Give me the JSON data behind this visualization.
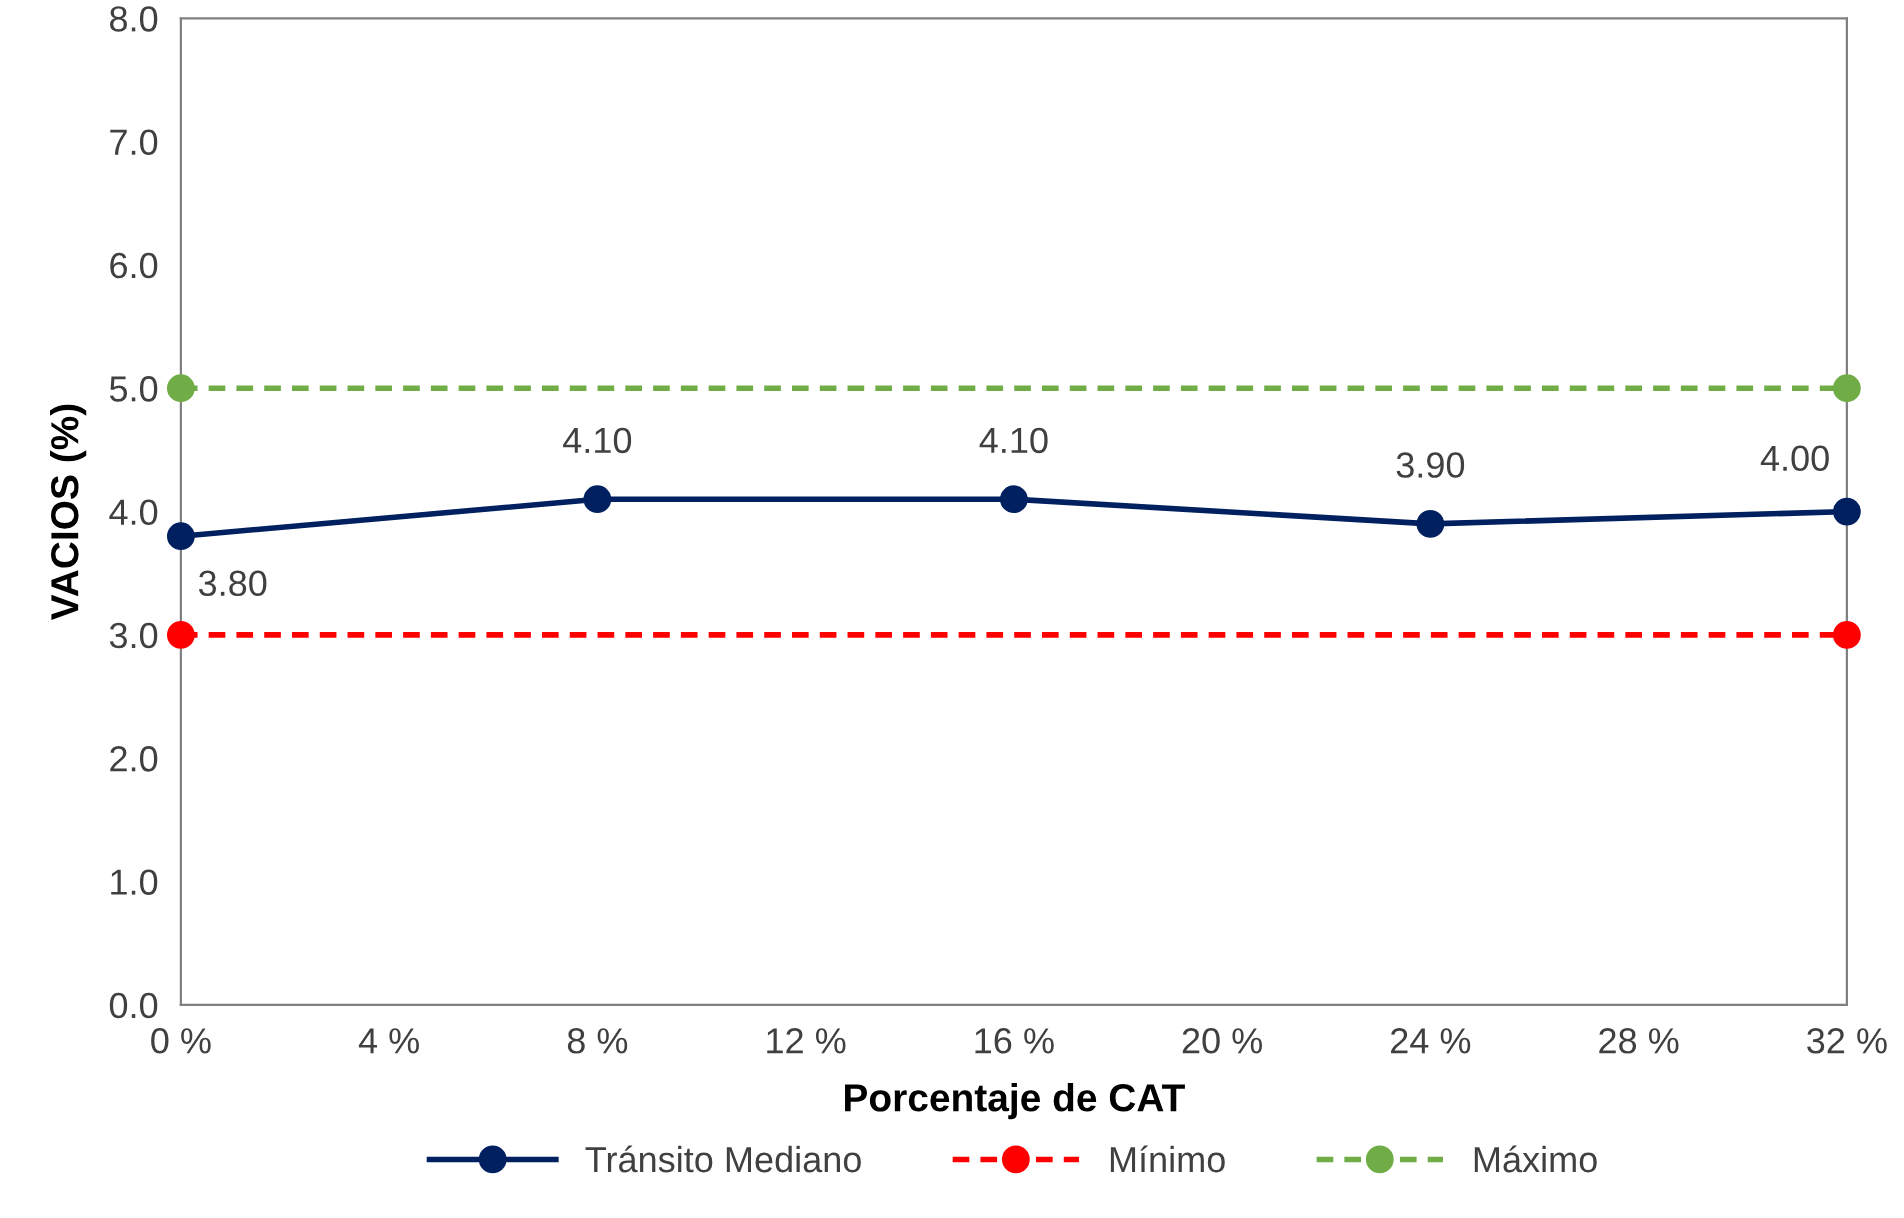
{
  "chart_data": {
    "type": "line",
    "xlabel": "Porcentaje de CAT",
    "ylabel": "VACIOS (%)",
    "xlim": [
      0,
      32
    ],
    "ylim": [
      0,
      8
    ],
    "xticks": [
      {
        "value": 0,
        "label": "0 %"
      },
      {
        "value": 4,
        "label": "4 %"
      },
      {
        "value": 8,
        "label": "8 %"
      },
      {
        "value": 12,
        "label": "12 %"
      },
      {
        "value": 16,
        "label": "16 %"
      },
      {
        "value": 20,
        "label": "20 %"
      },
      {
        "value": 24,
        "label": "24 %"
      },
      {
        "value": 28,
        "label": "28 %"
      },
      {
        "value": 32,
        "label": "32 %"
      }
    ],
    "yticks": [
      {
        "value": 0,
        "label": "0.0"
      },
      {
        "value": 1,
        "label": "1.0"
      },
      {
        "value": 2,
        "label": "2.0"
      },
      {
        "value": 3,
        "label": "3.0"
      },
      {
        "value": 4,
        "label": "4.0"
      },
      {
        "value": 5,
        "label": "5.0"
      },
      {
        "value": 6,
        "label": "6.0"
      },
      {
        "value": 7,
        "label": "7.0"
      },
      {
        "value": 8,
        "label": "8.0"
      }
    ],
    "series": [
      {
        "name": "Tránsito Mediano",
        "color": "#002060",
        "x": [
          0,
          8,
          16,
          24,
          32
        ],
        "values": [
          3.8,
          4.1,
          4.1,
          3.9,
          4.0
        ],
        "value_labels": [
          "3.80",
          "4.10",
          "4.10",
          "3.90",
          "4.00"
        ],
        "marker": "circle",
        "line_style": "solid"
      },
      {
        "name": "Mínimo",
        "color": "#ff0000",
        "x": [
          0,
          32
        ],
        "values": [
          3.0,
          3.0
        ],
        "marker": "circle",
        "line_style": "dashed"
      },
      {
        "name": "Máximo",
        "color": "#70ad47",
        "x": [
          0,
          32
        ],
        "values": [
          5.0,
          5.0
        ],
        "marker": "circle",
        "line_style": "dashed"
      }
    ],
    "grid": false,
    "legend": "bottom"
  }
}
